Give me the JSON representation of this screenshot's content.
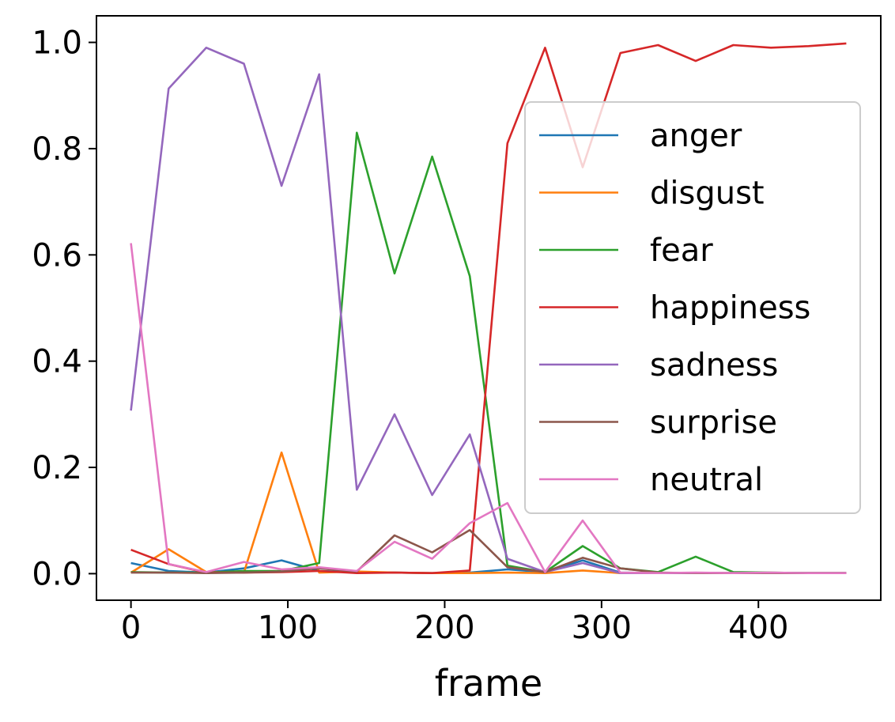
{
  "chart_data": {
    "type": "line",
    "title": "",
    "xlabel": "frame",
    "ylabel": "",
    "xlim": [
      -22,
      478
    ],
    "ylim": [
      -0.05,
      1.05
    ],
    "xticks": [
      0,
      100,
      200,
      300,
      400
    ],
    "yticks": [
      0.0,
      0.2,
      0.4,
      0.6,
      0.8,
      1.0
    ],
    "xtick_labels": [
      "0",
      "100",
      "200",
      "300",
      "400"
    ],
    "ytick_labels": [
      "0.0",
      "0.2",
      "0.4",
      "0.6",
      "0.8",
      "1.0"
    ],
    "grid": false,
    "legend_position": "right",
    "x": [
      0,
      24,
      48,
      72,
      96,
      120,
      144,
      168,
      192,
      216,
      240,
      264,
      288,
      312,
      336,
      360,
      384,
      408,
      432,
      456
    ],
    "series": [
      {
        "name": "anger",
        "color": "#1f77b4",
        "values": [
          0.02,
          0.005,
          0.002,
          0.01,
          0.025,
          0.005,
          0.003,
          0.002,
          0.001,
          0.002,
          0.008,
          0.003,
          0.025,
          0.002,
          0.001,
          0.001,
          0.001,
          0.001,
          0.001,
          0.001
        ]
      },
      {
        "name": "disgust",
        "color": "#ff7f0e",
        "values": [
          0.002,
          0.046,
          0.003,
          0.002,
          0.228,
          0.002,
          0.004,
          0.002,
          0.001,
          0.001,
          0.002,
          0.001,
          0.006,
          0.001,
          0.001,
          0.001,
          0.001,
          0.001,
          0.001,
          0.001
        ]
      },
      {
        "name": "fear",
        "color": "#2ca02c",
        "values": [
          0.003,
          0.002,
          0.002,
          0.005,
          0.005,
          0.02,
          0.83,
          0.565,
          0.785,
          0.56,
          0.015,
          0.003,
          0.052,
          0.01,
          0.003,
          0.032,
          0.003,
          0.002,
          0.001,
          0.001
        ]
      },
      {
        "name": "happiness",
        "color": "#d62728",
        "values": [
          0.045,
          0.018,
          0.002,
          0.002,
          0.003,
          0.005,
          0.001,
          0.002,
          0.001,
          0.006,
          0.81,
          0.99,
          0.765,
          0.98,
          0.995,
          0.965,
          0.995,
          0.99,
          0.993,
          0.998
        ]
      },
      {
        "name": "sadness",
        "color": "#9467bd",
        "values": [
          0.307,
          0.913,
          0.99,
          0.96,
          0.73,
          0.94,
          0.158,
          0.3,
          0.148,
          0.262,
          0.028,
          0.003,
          0.02,
          0.001,
          0.001,
          0.001,
          0.001,
          0.001,
          0.001,
          0.001
        ]
      },
      {
        "name": "surprise",
        "color": "#8c564b",
        "values": [
          0.002,
          0.002,
          0.001,
          0.002,
          0.004,
          0.01,
          0.004,
          0.072,
          0.04,
          0.082,
          0.012,
          0.003,
          0.03,
          0.01,
          0.002,
          0.001,
          0.001,
          0.001,
          0.001,
          0.001
        ]
      },
      {
        "name": "neutral",
        "color": "#e377c2",
        "values": [
          0.622,
          0.018,
          0.003,
          0.022,
          0.008,
          0.012,
          0.005,
          0.06,
          0.028,
          0.095,
          0.133,
          0.003,
          0.1,
          0.002,
          0.001,
          0.002,
          0.001,
          0.002,
          0.001,
          0.001
        ]
      }
    ]
  }
}
